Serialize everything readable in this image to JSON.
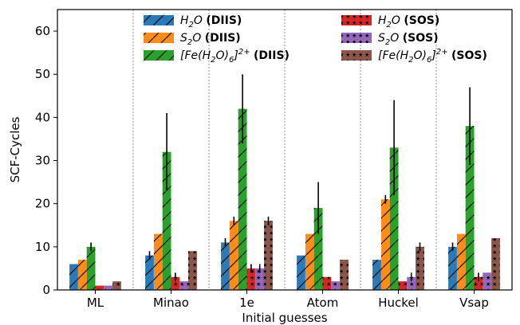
{
  "chart_data": {
    "type": "bar",
    "xlabel": "Initial guesses",
    "ylabel": "SCF-Cycles",
    "ylim": [
      0,
      65
    ],
    "yticks": [
      0,
      10,
      20,
      30,
      40,
      50,
      60
    ],
    "categories": [
      "ML",
      "Minao",
      "1e",
      "Atom",
      "Huckel",
      "Vsap"
    ],
    "grid": "vertical dotted separators between categories",
    "legend_position": "top",
    "series": [
      {
        "name": "H2O (DIIS)",
        "label_main": "H",
        "label_sub": "2",
        "label_rest": "O",
        "method": "(DIIS)",
        "color": "#2a7ab8",
        "hatch": "slash",
        "values": [
          6,
          8,
          11,
          8,
          7,
          10
        ],
        "errors": [
          0,
          1,
          1,
          0,
          0,
          1
        ]
      },
      {
        "name": "S2O (DIIS)",
        "label_main": "S",
        "label_sub": "2",
        "label_rest": "O",
        "method": "(DIIS)",
        "color": "#ff8c1a",
        "hatch": "slash",
        "values": [
          7,
          13,
          16,
          13,
          21,
          13
        ],
        "errors": [
          0,
          0,
          1,
          0,
          1,
          0
        ]
      },
      {
        "name": "[Fe(H2O)6]2+ (DIIS)",
        "label_main": "[Fe(H",
        "label_sub": "2",
        "label_rest": "O)",
        "label_sub2": "6",
        "label_end": "]",
        "label_sup": "2+",
        "method": "(DIIS)",
        "color": "#2ca02c",
        "hatch": "slash",
        "values": [
          10,
          32,
          42,
          19,
          33,
          38
        ],
        "errors": [
          1,
          9,
          8,
          6,
          11,
          9
        ]
      },
      {
        "name": "H2O (SOS)",
        "label_main": "H",
        "label_sub": "2",
        "label_rest": "O",
        "method": "(SOS)",
        "color": "#d62728",
        "hatch": "star",
        "values": [
          1,
          3,
          5,
          3,
          2,
          3
        ],
        "errors": [
          0,
          1,
          1,
          0,
          0,
          1
        ]
      },
      {
        "name": "S2O (SOS)",
        "label_main": "S",
        "label_sub": "2",
        "label_rest": "O",
        "method": "(SOS)",
        "color": "#9467bd",
        "hatch": "star",
        "values": [
          1,
          2,
          5,
          2,
          3,
          4
        ],
        "errors": [
          0,
          0,
          1,
          0,
          1,
          0
        ]
      },
      {
        "name": "[Fe(H2O)6]2+ (SOS)",
        "label_main": "[Fe(H",
        "label_sub": "2",
        "label_rest": "O)",
        "label_sub2": "6",
        "label_end": "]",
        "label_sup": "2+",
        "method": "(SOS)",
        "color": "#8c564b",
        "hatch": "star",
        "values": [
          2,
          9,
          16,
          7,
          10,
          12
        ],
        "errors": [
          0,
          0,
          1,
          0,
          1,
          0
        ]
      }
    ]
  }
}
